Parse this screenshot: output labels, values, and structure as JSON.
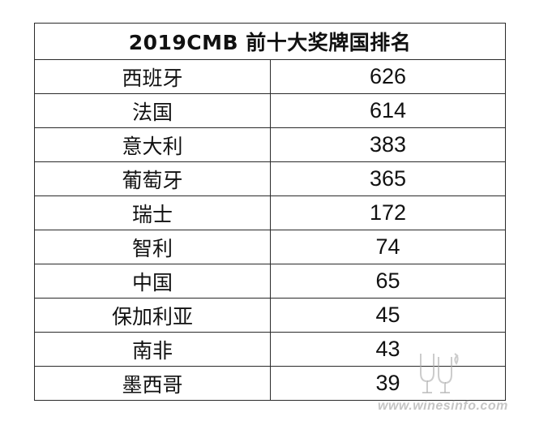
{
  "table": {
    "title": "2019CMB 前十大奖牌国排名",
    "rows": [
      {
        "country": "西班牙",
        "medals": "626"
      },
      {
        "country": "法国",
        "medals": "614"
      },
      {
        "country": "意大利",
        "medals": "383"
      },
      {
        "country": "葡萄牙",
        "medals": "365"
      },
      {
        "country": "瑞士",
        "medals": "172"
      },
      {
        "country": "智利",
        "medals": "74"
      },
      {
        "country": "中国",
        "medals": "65"
      },
      {
        "country": "保加利亚",
        "medals": "45"
      },
      {
        "country": "南非",
        "medals": "43"
      },
      {
        "country": "墨西哥",
        "medals": "39"
      }
    ]
  },
  "watermark": {
    "text": "www.winesinfo.com",
    "color": "#bbbbbb"
  }
}
